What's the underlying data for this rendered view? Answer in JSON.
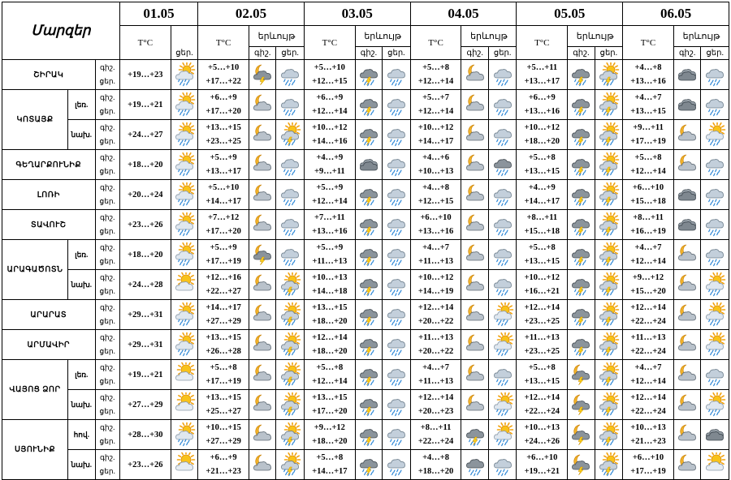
{
  "header": {
    "regions_label": "Մարզեր",
    "dates": [
      "01.05",
      "02.05",
      "03.05",
      "04.05",
      "05.05",
      "06.05"
    ],
    "temp_label": "T°C",
    "precip_label": "երևույթ",
    "night_label": "գիշ.",
    "day_label": "ցեր."
  },
  "rows": [
    {
      "region": "ՇԻՐԱԿ",
      "sub": "",
      "tod": [
        "գիշ.",
        "ցեր."
      ],
      "d1": {
        "temp": "+19…+23",
        "icon": "sun-cloud-rain"
      },
      "days": [
        {
          "n": "+5…+10",
          "d": "+17…+22",
          "i1": "moon-storm",
          "i2": "cloud-rain"
        },
        {
          "n": "+5…+10",
          "d": "+12…+15",
          "i1": "dark-storm",
          "i2": "cloud-rain"
        },
        {
          "n": "+5…+8",
          "d": "+12…+14",
          "i1": "moon-cloud",
          "i2": "cloud-rain"
        },
        {
          "n": "+5…+11",
          "d": "+13…+17",
          "i1": "dark-storm",
          "i2": "sun-storm"
        },
        {
          "n": "+4…+8",
          "d": "+13…+16",
          "i1": "dark-cloud",
          "i2": "cloud-rain"
        }
      ]
    },
    {
      "region": "ԿՈՏԱՅՔ",
      "sub": "լեռ.",
      "tod": [
        "գիշ.",
        "ցեր."
      ],
      "d1": {
        "temp": "+19…+21",
        "icon": "sun-cloud-rain"
      },
      "days": [
        {
          "n": "+6…+9",
          "d": "+17…+20",
          "i1": "moon-cloud",
          "i2": "cloud-rain"
        },
        {
          "n": "+6…+9",
          "d": "+12…+14",
          "i1": "dark-storm",
          "i2": "cloud-rain"
        },
        {
          "n": "+5…+7",
          "d": "+12…+14",
          "i1": "moon-cloud",
          "i2": "cloud-rain"
        },
        {
          "n": "+6…+9",
          "d": "+13…+16",
          "i1": "dark-storm",
          "i2": "sun-storm"
        },
        {
          "n": "+4…+7",
          "d": "+13…+15",
          "i1": "dark-cloud",
          "i2": "cloud-rain"
        }
      ]
    },
    {
      "region": "",
      "sub": "նախ.",
      "tod": [
        "գիշ.",
        "ցեր."
      ],
      "d1": {
        "temp": "+24…+27",
        "icon": "sun-cloud-rain"
      },
      "days": [
        {
          "n": "+13…+15",
          "d": "+23…+25",
          "i1": "moon-cloud",
          "i2": "sun-storm"
        },
        {
          "n": "+10…+12",
          "d": "+14…+16",
          "i1": "dark-storm",
          "i2": "cloud-rain"
        },
        {
          "n": "+10…+12",
          "d": "+14…+17",
          "i1": "moon-cloud",
          "i2": "cloud-rain"
        },
        {
          "n": "+10…+12",
          "d": "+18…+20",
          "i1": "dark-storm",
          "i2": "sun-storm"
        },
        {
          "n": "+9…+11",
          "d": "+17…+19",
          "i1": "moon-cloud",
          "i2": "sun-cloud-rain"
        }
      ]
    },
    {
      "region": "ԳԵՂԱՐՔՈՒՆԻՔ",
      "sub": "",
      "tod": [
        "գիշ.",
        "ցեր."
      ],
      "d1": {
        "temp": "+18…+20",
        "icon": "sun-cloud-rain"
      },
      "days": [
        {
          "n": "+5…+9",
          "d": "+13…+17",
          "i1": "moon-cloud",
          "i2": "cloud-rain"
        },
        {
          "n": "+4…+9",
          "d": "+9…+11",
          "i1": "dark-cloud",
          "i2": "cloud-rain"
        },
        {
          "n": "+4…+6",
          "d": "+10…+13",
          "i1": "moon-cloud",
          "i2": "dark-rain"
        },
        {
          "n": "+5…+8",
          "d": "+13…+15",
          "i1": "dark-storm",
          "i2": "sun-storm"
        },
        {
          "n": "+5…+8",
          "d": "+12…+14",
          "i1": "moon-cloud",
          "i2": "cloud-rain"
        }
      ]
    },
    {
      "region": "ԼՈՌԻ",
      "sub": "",
      "tod": [
        "գիշ.",
        "ցեր."
      ],
      "d1": {
        "temp": "+20…+24",
        "icon": "sun-cloud-rain"
      },
      "days": [
        {
          "n": "+5…+10",
          "d": "+14…+17",
          "i1": "moon-cloud",
          "i2": "cloud-rain"
        },
        {
          "n": "+5…+9",
          "d": "+12…+14",
          "i1": "dark-storm",
          "i2": "cloud-rain"
        },
        {
          "n": "+4…+8",
          "d": "+12…+15",
          "i1": "moon-cloud",
          "i2": "cloud-rain"
        },
        {
          "n": "+4…+9",
          "d": "+14…+17",
          "i1": "dark-storm",
          "i2": "sun-storm"
        },
        {
          "n": "+6…+10",
          "d": "+15…+18",
          "i1": "dark-cloud",
          "i2": "cloud-rain"
        }
      ]
    },
    {
      "region": "ՏԱՎՈՒՇ",
      "sub": "",
      "tod": [
        "գիշ.",
        "ցեր."
      ],
      "d1": {
        "temp": "+23…+26",
        "icon": "sun-cloud-rain"
      },
      "days": [
        {
          "n": "+7…+12",
          "d": "+17…+20",
          "i1": "moon-cloud",
          "i2": "cloud-rain"
        },
        {
          "n": "+7…+11",
          "d": "+13…+16",
          "i1": "dark-storm",
          "i2": "cloud-rain"
        },
        {
          "n": "+6…+10",
          "d": "+13…+16",
          "i1": "moon-cloud",
          "i2": "cloud-rain"
        },
        {
          "n": "+8…+11",
          "d": "+15…+18",
          "i1": "dark-storm",
          "i2": "sun-storm"
        },
        {
          "n": "+8…+11",
          "d": "+16…+19",
          "i1": "dark-cloud",
          "i2": "cloud-rain"
        }
      ]
    },
    {
      "region": "ԱՐԱԳԱԾՈՏՆ",
      "sub": "լեռ.",
      "tod": [
        "գիշ.",
        "ցեր."
      ],
      "d1": {
        "temp": "+18…+20",
        "icon": "sun-cloud-rain"
      },
      "days": [
        {
          "n": "+5…+9",
          "d": "+17…+19",
          "i1": "moon-storm",
          "i2": "cloud-rain"
        },
        {
          "n": "+5…+9",
          "d": "+11…+13",
          "i1": "dark-storm",
          "i2": "cloud-rain"
        },
        {
          "n": "+4…+7",
          "d": "+11…+13",
          "i1": "moon-cloud",
          "i2": "cloud-rain"
        },
        {
          "n": "+5…+8",
          "d": "+13…+15",
          "i1": "dark-storm",
          "i2": "sun-storm"
        },
        {
          "n": "+4…+7",
          "d": "+12…+14",
          "i1": "moon-cloud",
          "i2": "cloud-rain"
        }
      ]
    },
    {
      "region": "",
      "sub": "նախ.",
      "tod": [
        "գիշ.",
        "ցեր."
      ],
      "d1": {
        "temp": "+24…+28",
        "icon": "sun-cloud"
      },
      "days": [
        {
          "n": "+12…+16",
          "d": "+22…+27",
          "i1": "moon-cloud",
          "i2": "sun-storm"
        },
        {
          "n": "+10…+13",
          "d": "+14…+18",
          "i1": "dark-storm",
          "i2": "cloud-rain"
        },
        {
          "n": "+10…+12",
          "d": "+14…+19",
          "i1": "moon-cloud",
          "i2": "cloud-rain"
        },
        {
          "n": "+10…+12",
          "d": "+16…+21",
          "i1": "dark-storm",
          "i2": "sun-storm"
        },
        {
          "n": "+9…+12",
          "d": "+15…+20",
          "i1": "moon-cloud",
          "i2": "sun-cloud-rain"
        }
      ]
    },
    {
      "region": "ԱՐԱՐԱՏ",
      "sub": "",
      "tod": [
        "գիշ.",
        "ցեր."
      ],
      "d1": {
        "temp": "+29…+31",
        "icon": "sun-cloud-rain"
      },
      "days": [
        {
          "n": "+14…+17",
          "d": "+27…+29",
          "i1": "moon-cloud",
          "i2": "sun-storm"
        },
        {
          "n": "+13…+15",
          "d": "+18…+20",
          "i1": "dark-storm",
          "i2": "cloud-rain"
        },
        {
          "n": "+12…+14",
          "d": "+20…+22",
          "i1": "moon-cloud",
          "i2": "sun-cloud-rain"
        },
        {
          "n": "+12…+14",
          "d": "+23…+25",
          "i1": "dark-storm",
          "i2": "sun-storm"
        },
        {
          "n": "+12…+14",
          "d": "+22…+24",
          "i1": "moon-cloud",
          "i2": "sun-cloud-rain"
        }
      ]
    },
    {
      "region": "ԱՐՄԱՎԻՐ",
      "sub": "",
      "tod": [
        "գիշ.",
        "ցեր."
      ],
      "d1": {
        "temp": "+29…+31",
        "icon": "sun-cloud-rain"
      },
      "days": [
        {
          "n": "+13…+15",
          "d": "+26…+28",
          "i1": "moon-cloud",
          "i2": "sun-storm"
        },
        {
          "n": "+12…+14",
          "d": "+18…+20",
          "i1": "dark-storm",
          "i2": "cloud-rain"
        },
        {
          "n": "+11…+13",
          "d": "+20…+22",
          "i1": "moon-cloud",
          "i2": "sun-cloud-rain"
        },
        {
          "n": "+11…+13",
          "d": "+23…+25",
          "i1": "dark-storm",
          "i2": "sun-storm"
        },
        {
          "n": "+11…+13",
          "d": "+22…+24",
          "i1": "moon-cloud",
          "i2": "sun-cloud-rain"
        }
      ]
    },
    {
      "region": "ՎԱՅՈՑ ՁՈՐ",
      "sub": "լեռ.",
      "tod": [
        "գիշ.",
        "ցեր."
      ],
      "d1": {
        "temp": "+19…+21",
        "icon": "sun-cloud"
      },
      "days": [
        {
          "n": "+5…+8",
          "d": "+17…+19",
          "i1": "moon-cloud",
          "i2": "sun-storm"
        },
        {
          "n": "+5…+8",
          "d": "+12…+14",
          "i1": "dark-storm",
          "i2": "cloud-rain"
        },
        {
          "n": "+4…+7",
          "d": "+11…+13",
          "i1": "moon-cloud",
          "i2": "cloud-rain"
        },
        {
          "n": "+5…+8",
          "d": "+13…+15",
          "i1": "moon-storm",
          "i2": "sun-storm"
        },
        {
          "n": "+4…+7",
          "d": "+12…+14",
          "i1": "moon-cloud",
          "i2": "cloud-rain"
        }
      ]
    },
    {
      "region": "",
      "sub": "նախ.",
      "tod": [
        "գիշ.",
        "ցեր."
      ],
      "d1": {
        "temp": "+27…+29",
        "icon": "sun-cloud"
      },
      "days": [
        {
          "n": "+13…+15",
          "d": "+25…+27",
          "i1": "moon-cloud",
          "i2": "sun-storm"
        },
        {
          "n": "+13…+15",
          "d": "+17…+20",
          "i1": "dark-storm",
          "i2": "cloud-rain"
        },
        {
          "n": "+12…+14",
          "d": "+20…+23",
          "i1": "moon-cloud",
          "i2": "sun-cloud-rain"
        },
        {
          "n": "+12…+14",
          "d": "+22…+24",
          "i1": "moon-storm",
          "i2": "sun-storm"
        },
        {
          "n": "+12…+14",
          "d": "+22…+24",
          "i1": "moon-cloud",
          "i2": "sun-cloud-rain"
        }
      ]
    },
    {
      "region": "ՍՅՈՒՆԻՔ",
      "sub": "հով.",
      "tod": [
        "գիշ.",
        "ցեր."
      ],
      "d1": {
        "temp": "+28…+30",
        "icon": "sun-cloud-rain"
      },
      "days": [
        {
          "n": "+10…+15",
          "d": "+27…+29",
          "i1": "moon-cloud",
          "i2": "sun-storm"
        },
        {
          "n": "+9…+12",
          "d": "+18…+20",
          "i1": "dark-storm",
          "i2": "cloud-rain"
        },
        {
          "n": "+8…+11",
          "d": "+22…+24",
          "i1": "dark-storm",
          "i2": "sun-cloud-rain"
        },
        {
          "n": "+10…+13",
          "d": "+24…+26",
          "i1": "moon-storm",
          "i2": "sun-storm"
        },
        {
          "n": "+10…+13",
          "d": "+21…+23",
          "i1": "moon-cloud",
          "i2": "dark-cloud"
        }
      ]
    },
    {
      "region": "",
      "sub": "նախ.",
      "tod": [
        "գիշ.",
        "ցեր."
      ],
      "d1": {
        "temp": "+23…+26",
        "icon": "sun-cloud"
      },
      "days": [
        {
          "n": "+6…+9",
          "d": "+21…+23",
          "i1": "moon-cloud",
          "i2": "sun-storm"
        },
        {
          "n": "+5…+8",
          "d": "+14…+17",
          "i1": "dark-storm",
          "i2": "cloud-rain"
        },
        {
          "n": "+4…+8",
          "d": "+18…+20",
          "i1": "dark-rain",
          "i2": "cloud-rain"
        },
        {
          "n": "+6…+10",
          "d": "+19…+21",
          "i1": "moon-storm",
          "i2": "sun-storm"
        },
        {
          "n": "+6…+10",
          "d": "+17…+19",
          "i1": "moon-cloud",
          "i2": "sun-cloud"
        }
      ]
    }
  ]
}
